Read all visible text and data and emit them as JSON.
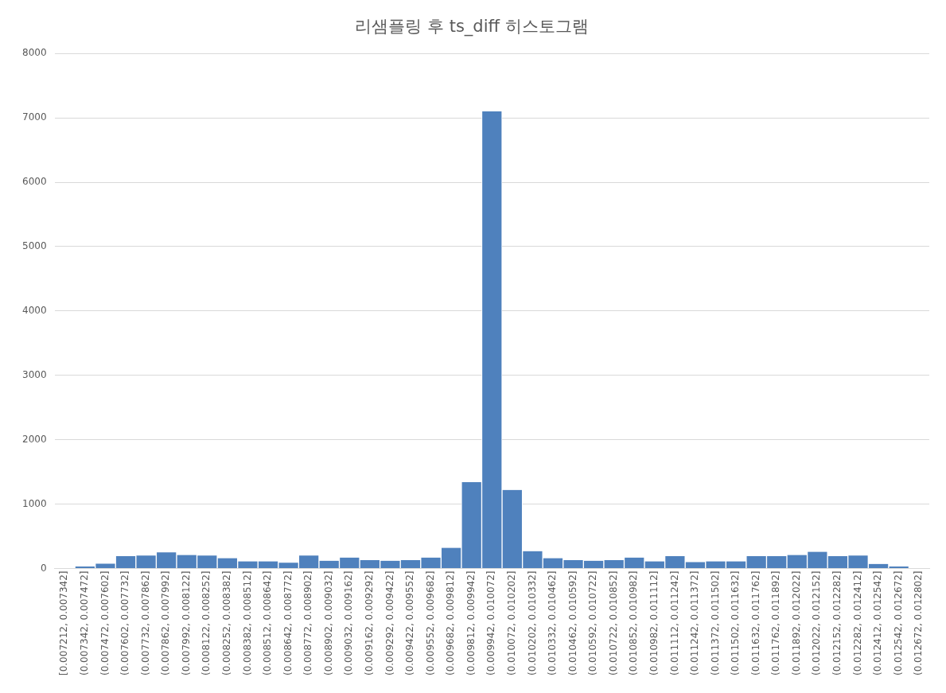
{
  "chart_data": {
    "type": "bar",
    "title": "리샘플링 후 ts_diff 히스토그램",
    "categories": [
      "[0.007212, 0.007342]",
      "(0.007342, 0.007472]",
      "(0.007472, 0.007602]",
      "(0.007602, 0.007732]",
      "(0.007732, 0.007862]",
      "(0.007862, 0.007992]",
      "(0.007992, 0.008122]",
      "(0.008122, 0.008252]",
      "(0.008252, 0.008382]",
      "(0.008382, 0.008512]",
      "(0.008512, 0.008642]",
      "(0.008642, 0.008772]",
      "(0.008772, 0.008902]",
      "(0.008902, 0.009032]",
      "(0.009032, 0.009162]",
      "(0.009162, 0.009292]",
      "(0.009292, 0.009422]",
      "(0.009422, 0.009552]",
      "(0.009552, 0.009682]",
      "(0.009682, 0.009812]",
      "(0.009812, 0.009942]",
      "(0.009942, 0.010072]",
      "(0.010072, 0.010202]",
      "(0.010202, 0.010332]",
      "(0.010332, 0.010462]",
      "(0.010462, 0.010592]",
      "(0.010592, 0.010722]",
      "(0.010722, 0.010852]",
      "(0.010852, 0.010982]",
      "(0.010982, 0.011112]",
      "(0.011112, 0.011242]",
      "(0.011242, 0.011372]",
      "(0.011372, 0.011502]",
      "(0.011502, 0.011632]",
      "(0.011632, 0.011762]",
      "(0.011762, 0.011892]",
      "(0.011892, 0.012022]",
      "(0.012022, 0.012152]",
      "(0.012152, 0.012282]",
      "(0.012282, 0.012412]",
      "(0.012412, 0.012542]",
      "(0.012542, 0.012672]",
      "(0.012672, 0.012802]"
    ],
    "values": [
      0,
      30,
      75,
      190,
      200,
      250,
      210,
      200,
      160,
      110,
      110,
      90,
      200,
      120,
      170,
      130,
      120,
      130,
      170,
      320,
      1340,
      7100,
      1220,
      270,
      160,
      130,
      120,
      130,
      170,
      110,
      190,
      100,
      110,
      110,
      190,
      190,
      210,
      260,
      190,
      200,
      70,
      30,
      0
    ],
    "color": "#4f81bd",
    "ylim": [
      0,
      8000
    ],
    "yticks": [
      0,
      1000,
      2000,
      3000,
      4000,
      5000,
      6000,
      7000,
      8000
    ],
    "grid": "y"
  }
}
